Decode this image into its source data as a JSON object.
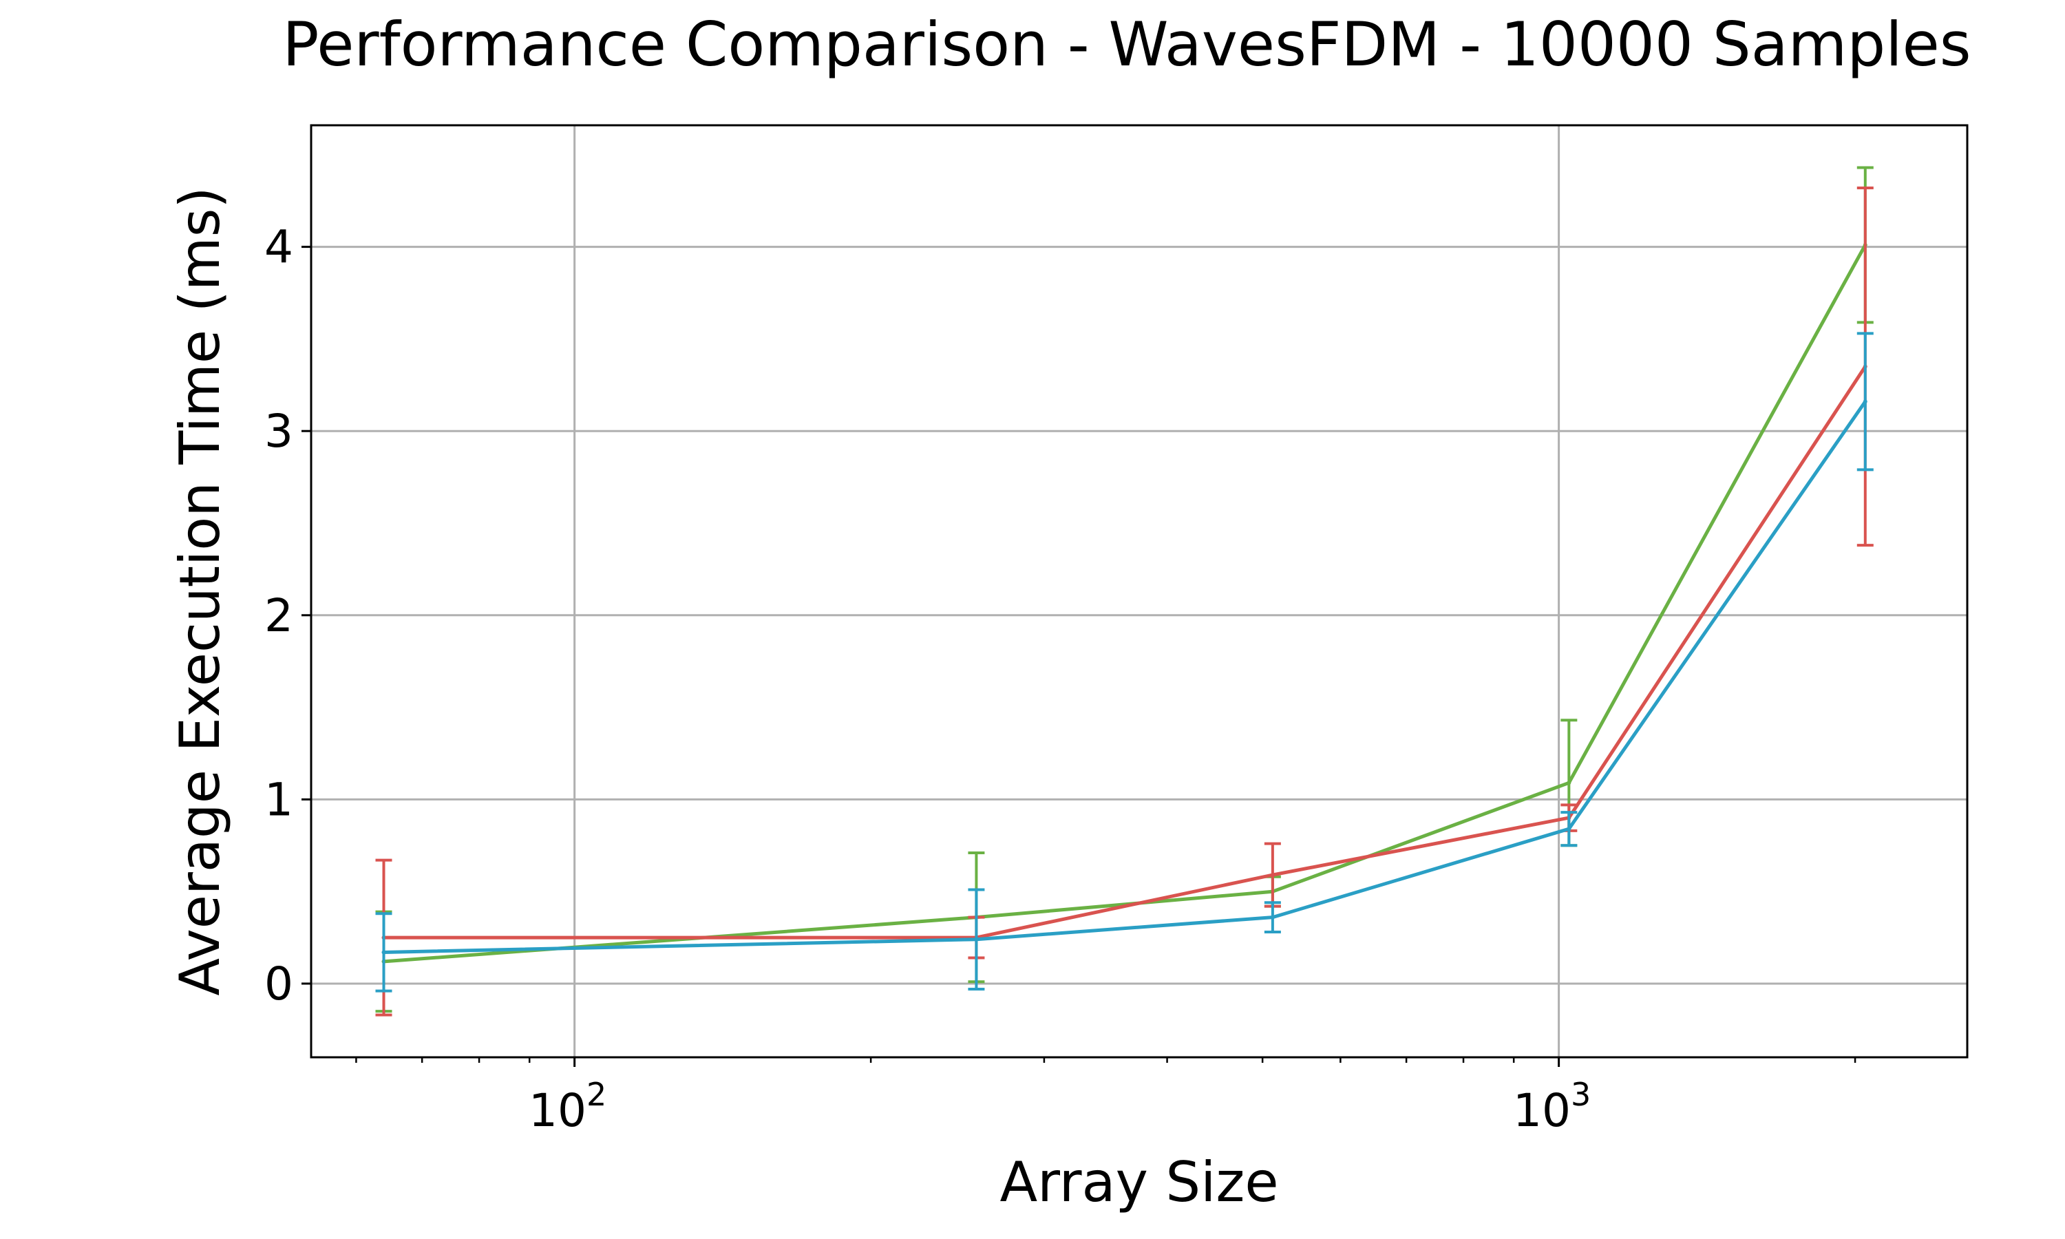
{
  "chart_data": {
    "type": "line",
    "title": "Performance Comparison - WavesFDM - 10000 Samples",
    "xlabel": "Array Size",
    "ylabel": "Average Execution Time (ms)",
    "xscale": "log",
    "xlim": [
      54,
      2600
    ],
    "ylim": [
      -0.4,
      4.66
    ],
    "x_ticks": [
      {
        "value": 100,
        "base": "10",
        "exp": "2"
      },
      {
        "value": 1000,
        "base": "10",
        "exp": "3"
      }
    ],
    "y_ticks": [
      {
        "value": 0,
        "label": "0"
      },
      {
        "value": 1,
        "label": "1"
      },
      {
        "value": 2,
        "label": "2"
      },
      {
        "value": 3,
        "label": "3"
      },
      {
        "value": 4,
        "label": "4"
      }
    ],
    "grid": true,
    "x": [
      64,
      256,
      512,
      1024,
      2048
    ],
    "series": [
      {
        "color": "#6ab144",
        "values": [
          0.12,
          0.36,
          0.5,
          1.09,
          4.01
        ],
        "err": [
          0.27,
          0.35,
          0.08,
          0.34,
          0.42
        ]
      },
      {
        "color": "#d9534f",
        "values": [
          0.25,
          0.25,
          0.59,
          0.9,
          3.35
        ],
        "err": [
          0.42,
          0.11,
          0.17,
          0.07,
          0.97
        ]
      },
      {
        "color": "#2a9fc5",
        "values": [
          0.17,
          0.24,
          0.36,
          0.84,
          3.16
        ],
        "err": [
          0.21,
          0.27,
          0.08,
          0.09,
          0.37
        ]
      }
    ]
  }
}
